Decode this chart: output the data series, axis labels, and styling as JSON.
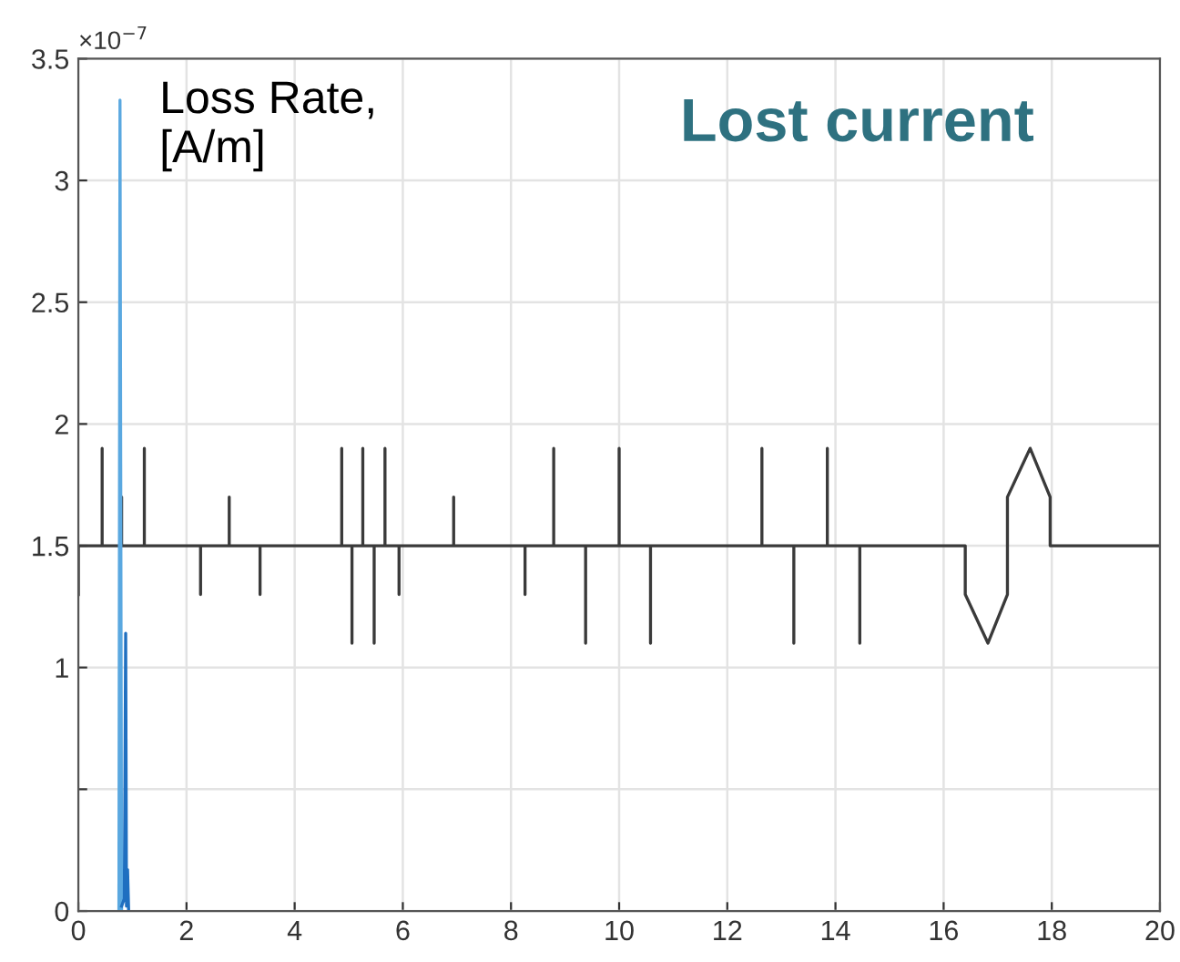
{
  "chart_data": {
    "type": "line",
    "title": "Lost current",
    "ylabel": "Loss Rate,\n[A/m]",
    "annotations": [
      "×10$^{−7}$"
    ],
    "xlim": [
      0,
      20
    ],
    "xticks": [
      0,
      2,
      4,
      6,
      8,
      10,
      12,
      14,
      16,
      18,
      20
    ],
    "ylim": [
      0,
      3.5
    ],
    "yticks": [
      0,
      {
        "value": 0.5,
        "label": null
      },
      1,
      1.5,
      2,
      2.5,
      3,
      3.5
    ],
    "grid": true,
    "legend": false,
    "marker": "none",
    "line_style": "solid",
    "series": [
      {
        "color": "#3a3a3a",
        "x": [
          0,
          0,
          0.44,
          0.44,
          0.44,
          0.8,
          0.8,
          0.8,
          1.22,
          1.22,
          1.22,
          2.26,
          2.26,
          2.26,
          2.79,
          2.79,
          2.79,
          3.36,
          3.36,
          3.36,
          4.87,
          4.87,
          4.87,
          5.06,
          5.06,
          5.06,
          5.26,
          5.26,
          5.26,
          5.47,
          5.47,
          5.47,
          5.67,
          5.67,
          5.67,
          5.93,
          5.93,
          5.93,
          6.94,
          6.94,
          6.94,
          8.26,
          8.26,
          8.26,
          8.79,
          8.79,
          8.79,
          9.38,
          9.38,
          9.38,
          10.0,
          10.0,
          10.0,
          10.58,
          10.58,
          10.58,
          12.64,
          12.64,
          12.64,
          13.23,
          13.23,
          13.23,
          13.85,
          13.85,
          13.85,
          14.45,
          14.45,
          14.45,
          16.4,
          16.4,
          16.82,
          17.18,
          17.18,
          17.6,
          17.97,
          17.97,
          20
        ],
        "values": [
          1.3,
          1.5,
          1.5,
          1.9,
          1.5,
          1.5,
          1.7,
          1.5,
          1.5,
          1.9,
          1.5,
          1.5,
          1.3,
          1.5,
          1.5,
          1.7,
          1.5,
          1.5,
          1.3,
          1.5,
          1.5,
          1.9,
          1.5,
          1.5,
          1.1,
          1.5,
          1.5,
          1.9,
          1.5,
          1.5,
          1.1,
          1.5,
          1.5,
          1.9,
          1.5,
          1.5,
          1.3,
          1.5,
          1.5,
          1.7,
          1.5,
          1.5,
          1.3,
          1.5,
          1.5,
          1.9,
          1.5,
          1.5,
          1.1,
          1.5,
          1.5,
          1.9,
          1.5,
          1.5,
          1.1,
          1.5,
          1.5,
          1.9,
          1.5,
          1.5,
          1.1,
          1.5,
          1.5,
          1.9,
          1.5,
          1.5,
          1.1,
          1.5,
          1.5,
          1.3,
          1.1,
          1.3,
          1.7,
          1.9,
          1.7,
          1.5,
          1.5
        ]
      },
      {
        "color": "#5aa8e0",
        "x": [
          0.75,
          0.77,
          0.8
        ],
        "values": [
          0,
          3.33,
          0
        ]
      },
      {
        "color": "#1f6fc0",
        "x": [
          0.8,
          0.85,
          0.875,
          0.89,
          0.91,
          0.93
        ],
        "values": [
          0.02,
          0.05,
          1.14,
          0.02,
          0.17,
          0
        ]
      }
    ]
  }
}
